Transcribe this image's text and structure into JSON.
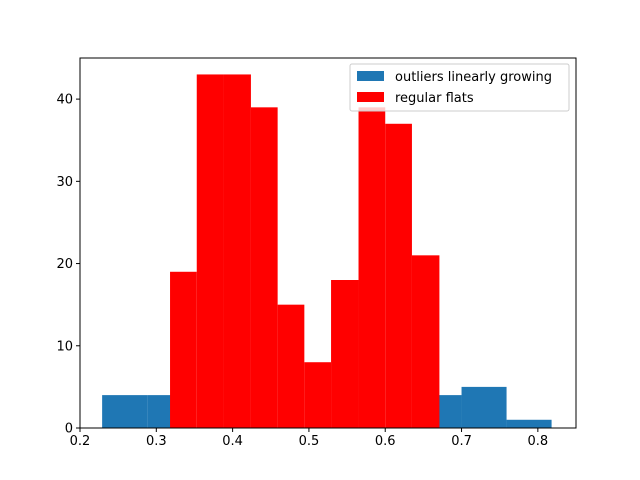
{
  "chart_data": {
    "type": "bar",
    "xlim": [
      0.2,
      0.85
    ],
    "ylim": [
      0,
      45
    ],
    "x_ticks": [
      0.2,
      0.3,
      0.4,
      0.5,
      0.6,
      0.7,
      0.8
    ],
    "x_tick_labels": [
      "0.2",
      "0.3",
      "0.4",
      "0.5",
      "0.6",
      "0.7",
      "0.8"
    ],
    "y_ticks": [
      0,
      10,
      20,
      30,
      40
    ],
    "y_tick_labels": [
      "0",
      "10",
      "20",
      "30",
      "40"
    ],
    "grid": false,
    "legend_position": "top-right",
    "series": [
      {
        "name": "outliers linearly growing",
        "color": "#1f77b4",
        "bins": [
          {
            "x0": 0.229,
            "x1": 0.288,
            "value": 4
          },
          {
            "x0": 0.288,
            "x1": 0.347,
            "value": 4
          },
          {
            "x0": 0.347,
            "x1": 0.406,
            "value": 0
          },
          {
            "x0": 0.406,
            "x1": 0.465,
            "value": 0
          },
          {
            "x0": 0.465,
            "x1": 0.524,
            "value": 0
          },
          {
            "x0": 0.524,
            "x1": 0.583,
            "value": 0
          },
          {
            "x0": 0.583,
            "x1": 0.641,
            "value": 0
          },
          {
            "x0": 0.641,
            "x1": 0.7,
            "value": 4
          },
          {
            "x0": 0.7,
            "x1": 0.759,
            "value": 5
          },
          {
            "x0": 0.759,
            "x1": 0.818,
            "value": 1
          }
        ]
      },
      {
        "name": "regular flats",
        "color": "#ff0000",
        "bins": [
          {
            "x0": 0.318,
            "x1": 0.353,
            "value": 19
          },
          {
            "x0": 0.353,
            "x1": 0.388,
            "value": 43
          },
          {
            "x0": 0.388,
            "x1": 0.424,
            "value": 43
          },
          {
            "x0": 0.424,
            "x1": 0.459,
            "value": 39
          },
          {
            "x0": 0.459,
            "x1": 0.494,
            "value": 15
          },
          {
            "x0": 0.494,
            "x1": 0.529,
            "value": 8
          },
          {
            "x0": 0.529,
            "x1": 0.565,
            "value": 18
          },
          {
            "x0": 0.565,
            "x1": 0.6,
            "value": 39
          },
          {
            "x0": 0.6,
            "x1": 0.635,
            "value": 37
          },
          {
            "x0": 0.635,
            "x1": 0.671,
            "value": 21
          }
        ]
      }
    ]
  }
}
